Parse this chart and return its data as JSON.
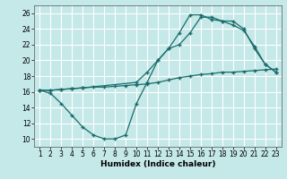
{
  "xlabel": "Humidex (Indice chaleur)",
  "bg_color": "#c5e8e8",
  "grid_color": "#ffffff",
  "line_color": "#1a6b6b",
  "xlim": [
    0.5,
    23.5
  ],
  "ylim": [
    9,
    27
  ],
  "xticks": [
    1,
    2,
    3,
    4,
    5,
    6,
    7,
    8,
    9,
    10,
    11,
    12,
    13,
    14,
    15,
    16,
    17,
    18,
    19,
    20,
    21,
    22,
    23
  ],
  "yticks": [
    10,
    12,
    14,
    16,
    18,
    20,
    22,
    24,
    26
  ],
  "line1_x": [
    1,
    2,
    3,
    4,
    5,
    6,
    7,
    8,
    9,
    10,
    11,
    12,
    13,
    14,
    15,
    16,
    17,
    18,
    19,
    20,
    21,
    22,
    23
  ],
  "line1_y": [
    16.2,
    15.8,
    14.5,
    13.0,
    11.5,
    10.5,
    10.0,
    10.0,
    10.5,
    14.5,
    17.2,
    20.0,
    21.5,
    22.0,
    23.5,
    25.5,
    25.5,
    25.0,
    25.0,
    24.0,
    21.5,
    19.5,
    18.5
  ],
  "line2_x": [
    1,
    2,
    3,
    4,
    5,
    6,
    7,
    8,
    9,
    10,
    11,
    12,
    13,
    14,
    15,
    16,
    17,
    18,
    19,
    20,
    21,
    22,
    23
  ],
  "line2_y": [
    16.2,
    16.2,
    16.3,
    16.4,
    16.5,
    16.6,
    16.6,
    16.7,
    16.8,
    16.9,
    17.0,
    17.2,
    17.5,
    17.8,
    18.0,
    18.2,
    18.3,
    18.5,
    18.5,
    18.6,
    18.7,
    18.8,
    18.9
  ],
  "line3_x": [
    1,
    2,
    3,
    4,
    5,
    10,
    11,
    12,
    13,
    14,
    15,
    16,
    17,
    18,
    19,
    20,
    21,
    22,
    23
  ],
  "line3_y": [
    16.2,
    16.2,
    16.3,
    16.4,
    16.5,
    17.2,
    18.5,
    20.0,
    21.5,
    23.5,
    25.8,
    25.8,
    25.2,
    25.0,
    24.5,
    23.8,
    21.8,
    19.5,
    18.5
  ],
  "marker": "+",
  "markersize": 3,
  "linewidth": 0.9,
  "tick_fontsize": 5.5,
  "xlabel_fontsize": 6.5
}
